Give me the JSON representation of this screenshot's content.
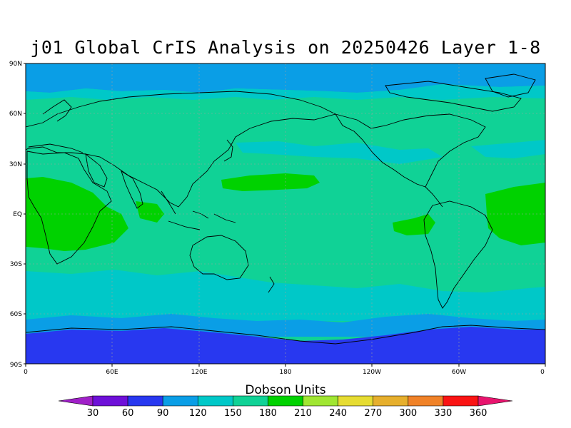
{
  "title": "j01 Global CrIS Analysis on 20250426 Layer 1-8",
  "lat_ticks": [
    "90N",
    "60N",
    "30N",
    "EQ",
    "30S",
    "60S",
    "90S"
  ],
  "lon_ticks": [
    "0",
    "60E",
    "120E",
    "180",
    "120W",
    "60W",
    "0"
  ],
  "colorbar": {
    "title": "Dobson Units",
    "labels": [
      "30",
      "60",
      "90",
      "120",
      "150",
      "180",
      "210",
      "240",
      "270",
      "300",
      "330",
      "360"
    ],
    "colors": [
      "#a020c8",
      "#6e10d8",
      "#2838f0",
      "#0a9ee6",
      "#00c8c8",
      "#10d296",
      "#00d200",
      "#a0e632",
      "#e6dc32",
      "#e6af2d",
      "#f08228",
      "#fa1414",
      "#e8146e"
    ]
  },
  "field_colors": {
    "band_60_90": "#2838f0",
    "band_90_120": "#0a9ee6",
    "band_120_150": "#00c8c8",
    "band_150_180": "#10d296",
    "band_180_210": "#00d200",
    "coast": "#000000",
    "grid": "#a0a0a0"
  }
}
